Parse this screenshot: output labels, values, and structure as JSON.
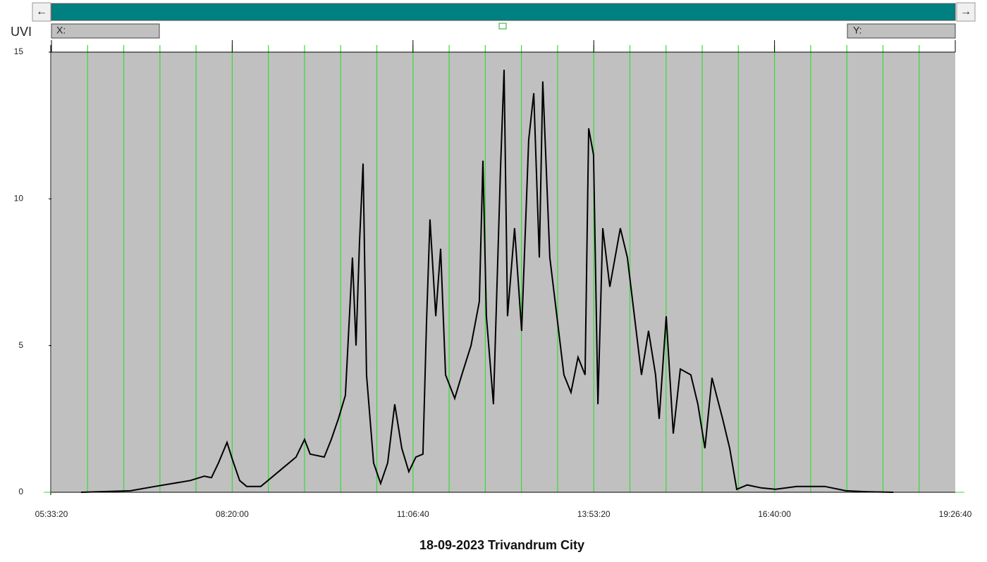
{
  "ui": {
    "left_arrow": "←",
    "right_arrow": "→",
    "x_readout": "X:",
    "y_readout": "Y:"
  },
  "chart_data": {
    "type": "line",
    "title": "18-09-2023 Trivandrum City",
    "ylabel": "UVI",
    "color": "#000000",
    "grid_color": "#33dd33",
    "plot_background": "#c0c0c0",
    "xlim": [
      20000,
      70000
    ],
    "ylim": [
      0,
      15
    ],
    "xticks": [
      {
        "value": 20000,
        "label": "05:33:20"
      },
      {
        "value": 30000,
        "label": "08:20:00"
      },
      {
        "value": 40000,
        "label": "11:06:40"
      },
      {
        "value": 50000,
        "label": "13:53:20"
      },
      {
        "value": 60000,
        "label": "16:40:00"
      },
      {
        "value": 70000,
        "label": "19:26:40"
      }
    ],
    "yticks": [
      0,
      5,
      10,
      15
    ],
    "xgrid": [
      22000,
      24000,
      26000,
      28000,
      30000,
      32000,
      34000,
      36000,
      38000,
      40000,
      42000,
      44000,
      46000,
      48000,
      50000,
      52000,
      54000,
      56000,
      58000,
      60000,
      62000,
      64000,
      66000,
      68000
    ],
    "x": [
      21640,
      24370,
      25730,
      27680,
      28460,
      28850,
      29240,
      29710,
      30020,
      30410,
      30800,
      31580,
      32170,
      32750,
      33530,
      34000,
      34310,
      35090,
      35480,
      35870,
      36260,
      36650,
      36850,
      37040,
      37240,
      37430,
      37820,
      38210,
      38600,
      38990,
      39380,
      39770,
      40160,
      40550,
      40750,
      40940,
      41260,
      41530,
      41800,
      42310,
      42700,
      43210,
      43670,
      43870,
      44060,
      44450,
      44840,
      45040,
      45230,
      45620,
      46010,
      46400,
      46680,
      46990,
      47180,
      47570,
      47960,
      48350,
      48740,
      49130,
      49520,
      49720,
      49990,
      50230,
      50500,
      50890,
      51470,
      51860,
      52250,
      52640,
      53030,
      53420,
      53620,
      54010,
      54400,
      54790,
      55370,
      55760,
      56150,
      56540,
      57130,
      57520,
      57910,
      58490,
      59270,
      60050,
      61220,
      62780,
      63950,
      65120,
      66570
    ],
    "values": [
      0,
      0.05,
      0.2,
      0.4,
      0.55,
      0.5,
      1.0,
      1.7,
      1.1,
      0.4,
      0.2,
      0.2,
      0.5,
      0.8,
      1.2,
      1.8,
      1.3,
      1.2,
      1.8,
      2.5,
      3.3,
      8,
      5,
      8.5,
      11.2,
      4,
      1,
      0.3,
      1,
      3,
      1.5,
      0.7,
      1.2,
      1.3,
      5.8,
      9.3,
      6,
      8.3,
      4,
      3.2,
      4,
      5,
      6.5,
      11.3,
      6,
      3,
      11,
      14.4,
      6,
      9,
      5.5,
      12,
      13.6,
      8,
      14,
      8,
      6,
      4,
      3.4,
      4.6,
      4,
      12.4,
      11.5,
      3,
      9,
      7,
      9,
      8,
      6,
      4,
      5.5,
      4,
      2.5,
      6,
      2,
      4.2,
      4,
      3,
      1.5,
      3.9,
      2.5,
      1.5,
      0.1,
      0.25,
      0.15,
      0.1,
      0.2,
      0.2,
      0.05,
      0.02,
      0
    ]
  }
}
